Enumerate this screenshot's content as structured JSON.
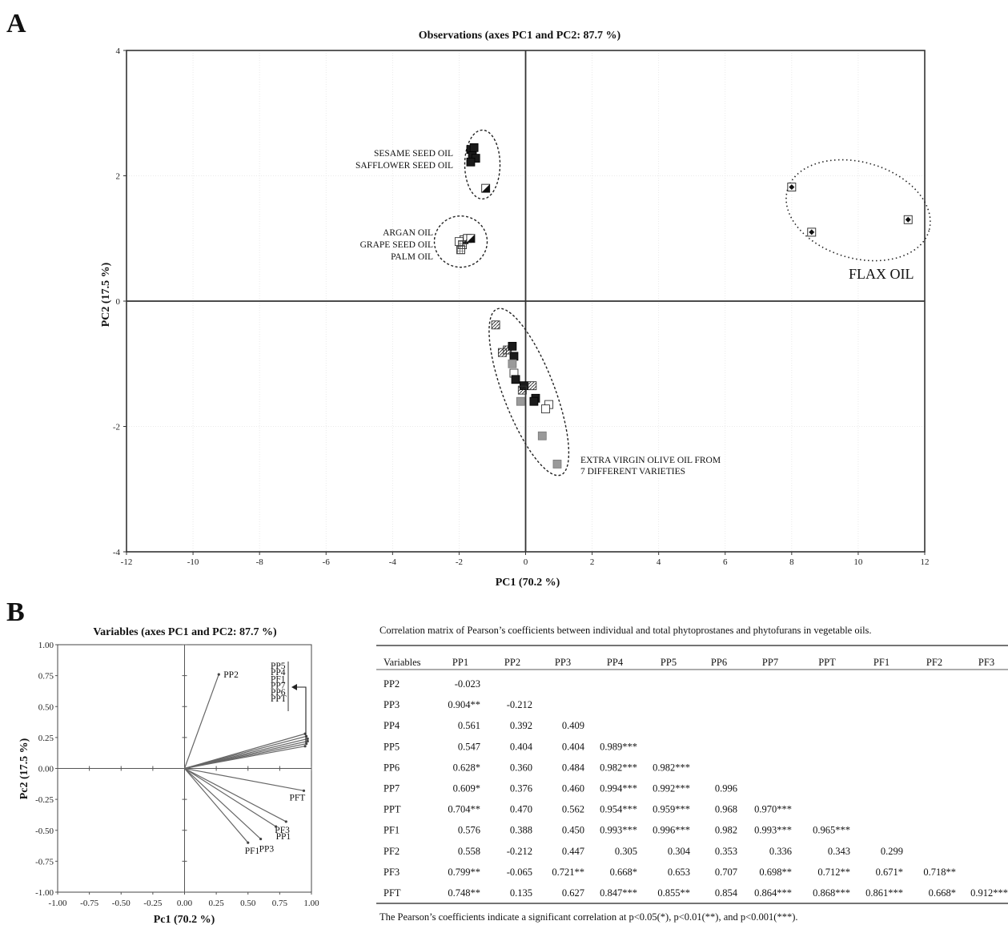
{
  "panel_a_letter": "A",
  "panel_b_letter": "B",
  "chart_data": [
    {
      "type": "scatter",
      "title": "Observations (axes PC1 and PC2: 87.7 %)",
      "xlabel": "PC1 (70.2 %)",
      "ylabel": "PC2 (17.5 %)",
      "xlim": [
        -12,
        12
      ],
      "ylim": [
        -4,
        4
      ],
      "xticks": [
        -12,
        -10,
        -8,
        -6,
        -4,
        -2,
        0,
        2,
        4,
        6,
        8,
        10,
        12
      ],
      "xtick_labels": [
        "-12",
        "-10",
        "-8",
        "-6",
        "-4",
        "-2",
        "0",
        "2",
        "4",
        "6",
        "8",
        "10",
        "12"
      ],
      "yticks": [
        -4,
        -2,
        0,
        2,
        4
      ],
      "ytick_labels": [
        "-4",
        "-2",
        "0",
        "2",
        "4"
      ],
      "grid": true,
      "points": [
        {
          "x": -1.65,
          "y": 2.42,
          "style": "black"
        },
        {
          "x": -1.55,
          "y": 2.45,
          "style": "black"
        },
        {
          "x": -1.6,
          "y": 2.32,
          "style": "black"
        },
        {
          "x": -1.5,
          "y": 2.28,
          "style": "black"
        },
        {
          "x": -1.65,
          "y": 2.22,
          "style": "black"
        },
        {
          "x": -1.2,
          "y": 1.8,
          "style": "half"
        },
        {
          "x": -1.85,
          "y": 0.98,
          "style": "half"
        },
        {
          "x": -1.75,
          "y": 1.0,
          "style": "half"
        },
        {
          "x": -1.65,
          "y": 1.0,
          "style": "half"
        },
        {
          "x": -2.0,
          "y": 0.95,
          "style": "open"
        },
        {
          "x": -1.9,
          "y": 0.9,
          "style": "grid"
        },
        {
          "x": -1.95,
          "y": 0.82,
          "style": "grid"
        },
        {
          "x": 8.0,
          "y": 1.82,
          "style": "diamond"
        },
        {
          "x": 8.6,
          "y": 1.1,
          "style": "diamond"
        },
        {
          "x": 11.5,
          "y": 1.3,
          "style": "diamond"
        },
        {
          "x": -0.9,
          "y": -0.38,
          "style": "hatch"
        },
        {
          "x": -0.7,
          "y": -0.82,
          "style": "hatch"
        },
        {
          "x": -0.55,
          "y": -0.78,
          "style": "hatch"
        },
        {
          "x": -0.4,
          "y": -0.72,
          "style": "black"
        },
        {
          "x": -0.35,
          "y": -0.88,
          "style": "black"
        },
        {
          "x": -0.4,
          "y": -1.0,
          "style": "gray"
        },
        {
          "x": -0.35,
          "y": -1.15,
          "style": "open"
        },
        {
          "x": -0.3,
          "y": -1.25,
          "style": "black"
        },
        {
          "x": -0.05,
          "y": -1.35,
          "style": "black"
        },
        {
          "x": -0.1,
          "y": -1.42,
          "style": "hatch"
        },
        {
          "x": 0.2,
          "y": -1.35,
          "style": "hatch"
        },
        {
          "x": 0.3,
          "y": -1.55,
          "style": "black"
        },
        {
          "x": 0.25,
          "y": -1.6,
          "style": "black"
        },
        {
          "x": -0.15,
          "y": -1.6,
          "style": "gray"
        },
        {
          "x": 0.7,
          "y": -1.65,
          "style": "open"
        },
        {
          "x": 0.6,
          "y": -1.72,
          "style": "open"
        },
        {
          "x": 0.5,
          "y": -2.15,
          "style": "gray"
        },
        {
          "x": 0.95,
          "y": -2.6,
          "style": "gray"
        }
      ],
      "groups": [
        {
          "labels": [
            "SESAME SEED OIL",
            "SAFFLOWER SEED OIL"
          ],
          "center": [
            -1.3,
            2.18
          ],
          "rx": 0.55,
          "ry": 0.55
        },
        {
          "labels": [
            "ARGAN OIL",
            "GRAPE SEED OIL",
            "PALM OIL"
          ],
          "center": [
            -1.9,
            0.95
          ],
          "rx": 0.8,
          "ry": 0.42
        },
        {
          "labels": [
            "FLAX OIL"
          ],
          "center": [
            10.0,
            1.45
          ],
          "rx": 2.1,
          "ry": 0.85
        },
        {
          "labels": [
            "EXTRA VIRGIN OLIVE OIL FROM",
            "7 DIFFERENT VARIETIES"
          ],
          "center": [
            0.1,
            -1.45
          ],
          "rx": 0.85,
          "ry": 1.65
        }
      ]
    },
    {
      "type": "scatter",
      "title": "Variables (axes PC1 and PC2: 87.7 %)",
      "xlabel": "Pc1 (70.2 %)",
      "ylabel": "Pc2 (17.5 %)",
      "xlim": [
        -1.0,
        1.0
      ],
      "ylim": [
        -1.0,
        1.0
      ],
      "xticks": [
        -1.0,
        -0.75,
        -0.5,
        -0.25,
        0.0,
        0.25,
        0.5,
        0.75,
        1.0
      ],
      "xtick_labels": [
        "-1.00",
        "-0.75",
        "-0.50",
        "-0.25",
        "0.00",
        "0.25",
        "0.50",
        "0.75",
        "1.00"
      ],
      "yticks": [
        -1.0,
        -0.75,
        -0.5,
        -0.25,
        0.0,
        0.25,
        0.5,
        0.75,
        1.0
      ],
      "ytick_labels": [
        "-1.00",
        "-0.75",
        "-0.50",
        "-0.25",
        "0.00",
        "0.25",
        "0.50",
        "0.75",
        "1.00"
      ],
      "vectors": [
        {
          "name": "PP2",
          "x": 0.27,
          "y": 0.76
        },
        {
          "name": "PP5",
          "x": 0.95,
          "y": 0.28
        },
        {
          "name": "PP4",
          "x": 0.96,
          "y": 0.26
        },
        {
          "name": "PF1",
          "x": 0.97,
          "y": 0.24
        },
        {
          "name": "PP7",
          "x": 0.97,
          "y": 0.22
        },
        {
          "name": "PP6",
          "x": 0.96,
          "y": 0.2
        },
        {
          "name": "PPT",
          "x": 0.95,
          "y": 0.18
        },
        {
          "name": "PFT",
          "x": 0.94,
          "y": -0.18
        },
        {
          "name": "PF3",
          "x": 0.8,
          "y": -0.43
        },
        {
          "name": "PP1",
          "x": 0.72,
          "y": -0.47
        },
        {
          "name": "PP3",
          "x": 0.6,
          "y": -0.57
        },
        {
          "name": "PF1",
          "x": 0.5,
          "y": -0.6
        }
      ],
      "stack_labels": [
        "PP5",
        "PP4",
        "PF1",
        "PP7",
        "PP6",
        "PPT"
      ]
    }
  ],
  "corr_table": {
    "caption": "Correlation matrix of Pearson’s coefficients between individual and total phytoprostanes and phytofurans in vegetable oils.",
    "columns": [
      "Variables",
      "PP1",
      "PP2",
      "PP3",
      "PP4",
      "PP5",
      "PP6",
      "PP7",
      "PPT",
      "PF1",
      "PF2",
      "PF3"
    ],
    "rows": [
      {
        "name": "PP2",
        "values": [
          "-0.023"
        ]
      },
      {
        "name": "PP3",
        "values": [
          "0.904**",
          "-0.212"
        ]
      },
      {
        "name": "PP4",
        "values": [
          "0.561",
          "0.392",
          "0.409"
        ]
      },
      {
        "name": "PP5",
        "values": [
          "0.547",
          "0.404",
          "0.404",
          "0.989***"
        ]
      },
      {
        "name": "PP6",
        "values": [
          "0.628*",
          "0.360",
          "0.484",
          "0.982***",
          "0.982***"
        ]
      },
      {
        "name": "PP7",
        "values": [
          "0.609*",
          "0.376",
          "0.460",
          "0.994***",
          "0.992***",
          "0.996"
        ]
      },
      {
        "name": "PPT",
        "values": [
          "0.704**",
          "0.470",
          "0.562",
          "0.954***",
          "0.959***",
          "0.968",
          "0.970***"
        ]
      },
      {
        "name": "PF1",
        "values": [
          "0.576",
          "0.388",
          "0.450",
          "0.993***",
          "0.996***",
          "0.982",
          "0.993***",
          "0.965***"
        ]
      },
      {
        "name": "PF2",
        "values": [
          "0.558",
          "-0.212",
          "0.447",
          "0.305",
          "0.304",
          "0.353",
          "0.336",
          "0.343",
          "0.299"
        ]
      },
      {
        "name": "PF3",
        "values": [
          "0.799**",
          "-0.065",
          "0.721**",
          "0.668*",
          "0.653",
          "0.707",
          "0.698**",
          "0.712**",
          "0.671*",
          "0.718**"
        ]
      },
      {
        "name": "PFT",
        "values": [
          "0.748**",
          "0.135",
          "0.627",
          "0.847***",
          "0.855**",
          "0.854",
          "0.864***",
          "0.868***",
          "0.861***",
          "0.668*",
          "0.912***"
        ]
      }
    ],
    "footnote": "The Pearson’s coefficients indicate a significant correlation at p<0.05(*), p<0.01(**), and p<0.001(***)."
  }
}
